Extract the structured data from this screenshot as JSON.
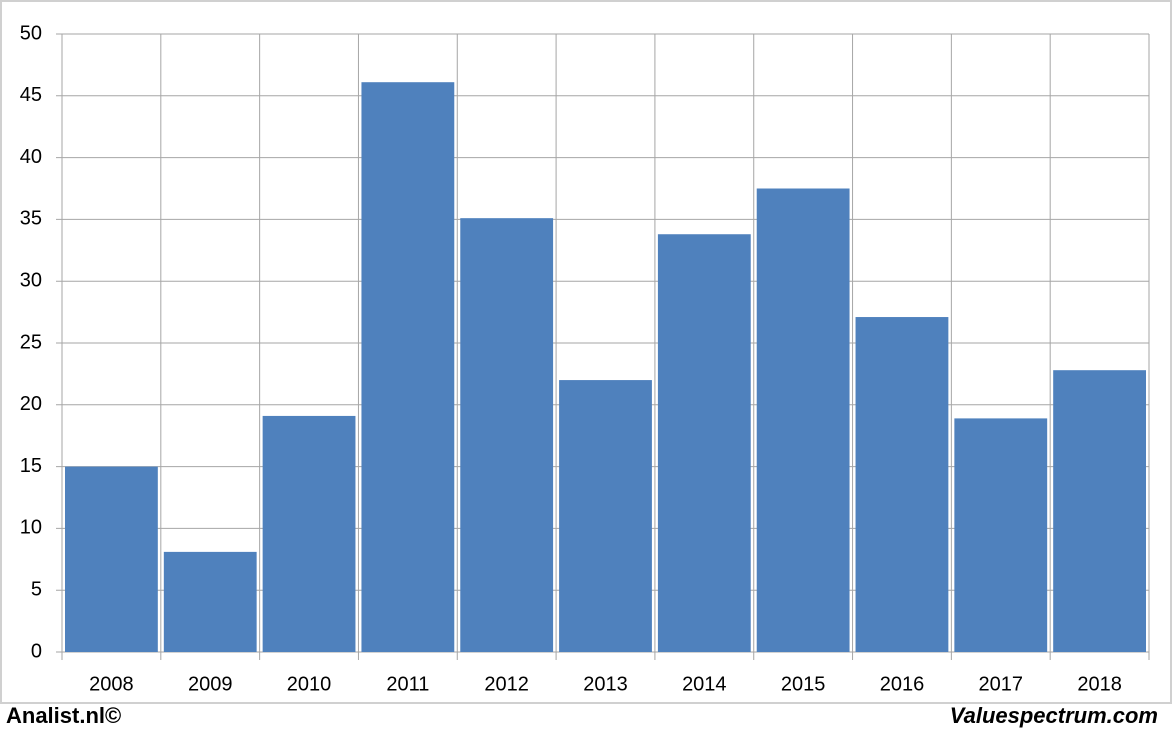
{
  "chart_data": {
    "type": "bar",
    "categories": [
      "2008",
      "2009",
      "2010",
      "2011",
      "2012",
      "2013",
      "2014",
      "2015",
      "2016",
      "2017",
      "2018"
    ],
    "values": [
      15,
      8.1,
      19.1,
      46.1,
      35.1,
      22,
      33.8,
      37.5,
      27.1,
      18.9,
      22.8
    ],
    "color": "#4f81bd",
    "ylim": [
      0,
      50
    ],
    "yticks": [
      0,
      5,
      10,
      15,
      20,
      25,
      30,
      35,
      40,
      45,
      50
    ],
    "grid": true
  },
  "footer": {
    "left": "Analist.nl©",
    "right": "Valuespectrum.com"
  }
}
